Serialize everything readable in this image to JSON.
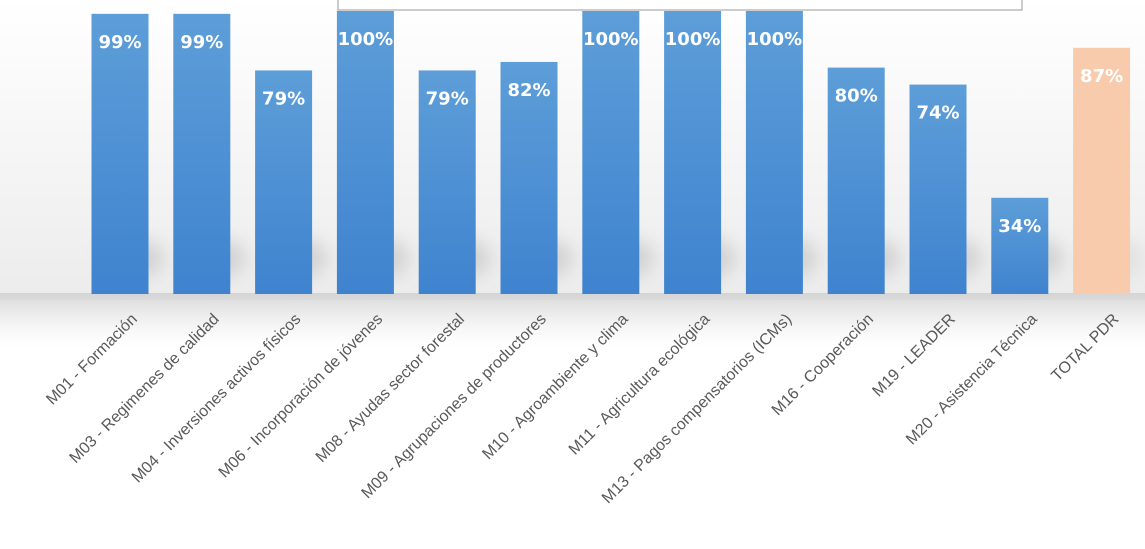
{
  "chart_data": {
    "type": "bar",
    "title": "",
    "xlabel": "",
    "ylabel": "",
    "ylim": [
      0,
      100
    ],
    "grid": false,
    "legend": "none",
    "categories": [
      "M01 - Formación",
      "M03 - Regimenes de calidad",
      "M04 - Inversiones activos físicos",
      "M06 - Incorporación de jóvenes",
      "M08 - Ayudas sector forestal",
      "M09 - Agrupaciones de productores",
      "M10 - Agroambiente y clima",
      "M11 - Agricultura ecológica",
      "M13 - Pagos compensatorios (ICMs)",
      "M16 - Cooperación",
      "M19 - LEADER",
      "M20 - Asistencia Técnica",
      "TOTAL PDR"
    ],
    "values": [
      99,
      99,
      79,
      100,
      79,
      82,
      100,
      100,
      100,
      80,
      74,
      34,
      87
    ],
    "value_labels": [
      "99%",
      "99%",
      "79%",
      "100%",
      "79%",
      "82%",
      "100%",
      "100%",
      "100%",
      "80%",
      "74%",
      "34%",
      "87%"
    ],
    "colors": {
      "bar": "#4a90d9",
      "bar_top": "#5b9bd5",
      "bar_bottom": "#3a7cc9",
      "total": "#f8cbad"
    }
  }
}
